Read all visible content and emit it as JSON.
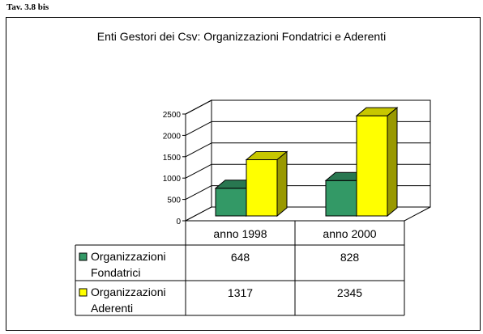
{
  "caption": "Tav. 3.8 bis",
  "colors": {
    "fondatrici": "#339966",
    "aderenti": "#ffff00"
  },
  "chart_data": {
    "type": "bar",
    "title": "Enti Gestori dei Csv: Organizzazioni Fondatrici e Aderenti",
    "categories": [
      "anno 1998",
      "anno 2000"
    ],
    "series": [
      {
        "name": [
          "Organizzazioni",
          "Fondatrici"
        ],
        "values": [
          648,
          828
        ]
      },
      {
        "name": [
          "Organizzazioni",
          "Aderenti"
        ],
        "values": [
          1317,
          2345
        ]
      }
    ],
    "yticks": [
      "0",
      "500",
      "1000",
      "1500",
      "2000",
      "2500"
    ],
    "ylim": [
      0,
      2500
    ],
    "grid": true,
    "legend": "data-table"
  }
}
